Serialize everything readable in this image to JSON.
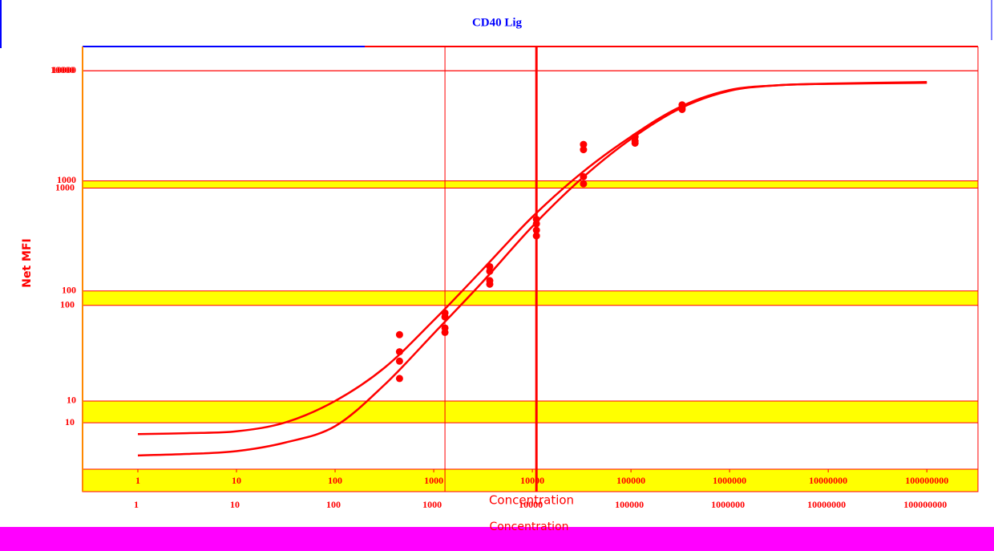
{
  "chart_data": {
    "type": "scatter",
    "title": "CD40 Lig",
    "x_label": "Concentration",
    "y_label": "Net MFI",
    "log_x": true,
    "log_y": true,
    "xlim": [
      0.275,
      330000000
    ],
    "ylim": [
      2.4,
      16600
    ],
    "xticks": [
      1,
      10,
      100,
      1000,
      10000,
      100000,
      1000000,
      10000000,
      100000000
    ],
    "yticks": [
      10,
      100,
      1000,
      10000
    ],
    "color": "#ff0000",
    "vlines": [
      1300,
      11000
    ],
    "points": {
      "x": [
        450,
        450,
        450,
        450,
        1300,
        1300,
        1300,
        1300,
        3700,
        3700,
        3700,
        3700,
        11000,
        11000,
        11000,
        11000,
        33000,
        33000,
        33000,
        33000,
        110000,
        110000,
        110000,
        330000,
        330000,
        330000
      ],
      "values": [
        40,
        28,
        23,
        16,
        63,
        58,
        46,
        42,
        166,
        151,
        124,
        115,
        447,
        407,
        356,
        316,
        2140,
        1920,
        1090,
        940,
        2510,
        2300,
        2200,
        4900,
        4600,
        4450
      ]
    },
    "curves": [
      {
        "x": [
          1,
          3.16,
          10,
          31.6,
          100,
          316,
          1000,
          3162,
          10000,
          31623,
          100000,
          316228,
          1000000,
          3162278,
          10000000,
          100000000
        ],
        "values": [
          5.0,
          5.1,
          5.3,
          6.4,
          10,
          20,
          54,
          158,
          470,
          1180,
          2520,
          4700,
          6680,
          7390,
          7640,
          7900
        ]
      },
      {
        "x": [
          1,
          3.16,
          10,
          31.6,
          100,
          316,
          1000,
          3162,
          10000,
          31623,
          100000,
          316228,
          1000000,
          3162278,
          10000000,
          100000000
        ],
        "values": [
          3.2,
          3.3,
          3.5,
          4.2,
          5.9,
          14,
          41,
          122,
          385,
          1050,
          2400,
          4550,
          6570,
          7390,
          7600,
          7770
        ]
      }
    ]
  }
}
